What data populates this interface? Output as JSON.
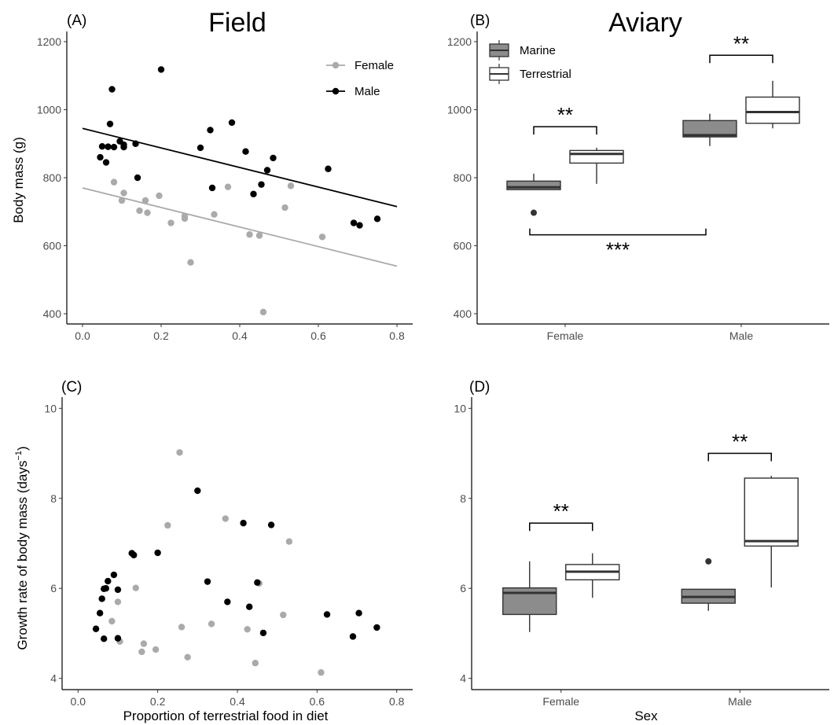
{
  "titles": {
    "field": "Field",
    "aviary": "Aviary"
  },
  "panel_labels": {
    "a": "(A)",
    "b": "(B)",
    "c": "(C)",
    "d": "(D)"
  },
  "axis_titles": {
    "body_mass": "Body mass (g)",
    "growth_rate": "Growth rate of body mass (days",
    "growth_rate_exp": "−1",
    "growth_rate_close": ")",
    "proportion": "Proportion of terrestrial food in diet",
    "sex": "Sex"
  },
  "colors": {
    "female": "#aaaaaa",
    "male": "#000000",
    "marine": "#8c8c8c",
    "terrestrial": "#ffffff",
    "box_line": "#333333"
  },
  "chart_data": [
    {
      "id": "A",
      "type": "scatter",
      "xlabel": "",
      "ylabel": "Body mass (g)",
      "xlim": [
        -0.04,
        0.84
      ],
      "ylim": [
        370,
        1230
      ],
      "xticks": [
        "0.0",
        "0.2",
        "0.4",
        "0.6",
        "0.8"
      ],
      "xtick_values": [
        0,
        0.2,
        0.4,
        0.6,
        0.8
      ],
      "yticks": [
        "400",
        "600",
        "800",
        "1000",
        "1200"
      ],
      "ytick_values": [
        400,
        600,
        800,
        1000,
        1200
      ],
      "legend": {
        "position": "top-right",
        "entries": [
          "Female",
          "Male"
        ]
      },
      "series": [
        {
          "name": "Female",
          "points": [
            [
              0.08,
              787
            ],
            [
              0.1,
              733
            ],
            [
              0.105,
              755
            ],
            [
              0.145,
              703
            ],
            [
              0.16,
              733
            ],
            [
              0.165,
              697
            ],
            [
              0.195,
              747
            ],
            [
              0.225,
              667
            ],
            [
              0.26,
              687
            ],
            [
              0.26,
              680
            ],
            [
              0.275,
              551
            ],
            [
              0.335,
              692
            ],
            [
              0.37,
              773
            ],
            [
              0.425,
              633
            ],
            [
              0.45,
              630
            ],
            [
              0.46,
              405
            ],
            [
              0.515,
              712
            ],
            [
              0.53,
              776
            ],
            [
              0.61,
              626
            ]
          ],
          "fit": {
            "x": [
              0.0,
              0.8
            ],
            "y": [
              770,
              540
            ]
          }
        },
        {
          "name": "Male",
          "points": [
            [
              0.045,
              860
            ],
            [
              0.05,
              892
            ],
            [
              0.06,
              845
            ],
            [
              0.065,
              891
            ],
            [
              0.07,
              958
            ],
            [
              0.075,
              1060
            ],
            [
              0.08,
              890
            ],
            [
              0.095,
              907
            ],
            [
              0.105,
              890
            ],
            [
              0.105,
              897
            ],
            [
              0.135,
              900
            ],
            [
              0.14,
              800
            ],
            [
              0.2,
              1118
            ],
            [
              0.3,
              888
            ],
            [
              0.325,
              940
            ],
            [
              0.33,
              770
            ],
            [
              0.38,
              962
            ],
            [
              0.415,
              877
            ],
            [
              0.435,
              752
            ],
            [
              0.455,
              780
            ],
            [
              0.47,
              822
            ],
            [
              0.485,
              858
            ],
            [
              0.625,
              826
            ],
            [
              0.69,
              667
            ],
            [
              0.705,
              660
            ],
            [
              0.75,
              679
            ]
          ],
          "fit": {
            "x": [
              0.0,
              0.8
            ],
            "y": [
              945,
              715
            ]
          }
        }
      ]
    },
    {
      "id": "B",
      "type": "box",
      "xlabel": "",
      "ylabel": "",
      "categories": [
        "Female",
        "Male"
      ],
      "ylim": [
        370,
        1230
      ],
      "yticks": [
        "400",
        "600",
        "800",
        "1000",
        "1200"
      ],
      "ytick_values": [
        400,
        600,
        800,
        1000,
        1200
      ],
      "legend": {
        "position": "top-left",
        "entries": [
          "Marine",
          "Terrestrial"
        ]
      },
      "series": [
        {
          "name": "Marine",
          "boxes": [
            {
              "category": "Female",
              "min": 765,
              "q1": 765,
              "median": 772,
              "q3": 790,
              "max": 812,
              "outliers": [
                697
              ]
            },
            {
              "category": "Male",
              "min": 893,
              "q1": 920,
              "median": 925,
              "q3": 968,
              "max": 988,
              "outliers": []
            }
          ]
        },
        {
          "name": "Terrestrial",
          "boxes": [
            {
              "category": "Female",
              "min": 782,
              "q1": 843,
              "median": 870,
              "q3": 880,
              "max": 888,
              "outliers": []
            },
            {
              "category": "Male",
              "min": 945,
              "q1": 960,
              "median": 993,
              "q3": 1037,
              "max": 1085,
              "outliers": []
            }
          ]
        }
      ],
      "annotations": [
        {
          "label": "**",
          "between": "Female Marine – Female Terrestrial",
          "y": 950
        },
        {
          "label": "**",
          "between": "Male Marine – Male Terrestrial",
          "y": 1160
        },
        {
          "label": "***",
          "between": "Female – Male",
          "y": 632
        }
      ]
    },
    {
      "id": "C",
      "type": "scatter",
      "xlabel": "Proportion of terrestrial food in diet",
      "ylabel": "Growth rate of body mass (days−1)",
      "xlim": [
        -0.04,
        0.84
      ],
      "ylim": [
        3.75,
        10.25
      ],
      "xticks": [
        "0.0",
        "0.2",
        "0.4",
        "0.6",
        "0.8"
      ],
      "xtick_values": [
        0,
        0.2,
        0.4,
        0.6,
        0.8
      ],
      "yticks": [
        "4",
        "6",
        "8",
        "10"
      ],
      "ytick_values": [
        4,
        6,
        8,
        10
      ],
      "series": [
        {
          "name": "Female",
          "points": [
            [
              0.085,
              5.27
            ],
            [
              0.1,
              5.7
            ],
            [
              0.105,
              4.82
            ],
            [
              0.145,
              6.01
            ],
            [
              0.16,
              4.59
            ],
            [
              0.165,
              4.77
            ],
            [
              0.195,
              4.64
            ],
            [
              0.225,
              7.4
            ],
            [
              0.255,
              9.02
            ],
            [
              0.26,
              5.14
            ],
            [
              0.275,
              4.47
            ],
            [
              0.335,
              5.21
            ],
            [
              0.37,
              7.55
            ],
            [
              0.425,
              5.09
            ],
            [
              0.445,
              4.34
            ],
            [
              0.455,
              6.11
            ],
            [
              0.515,
              5.41
            ],
            [
              0.53,
              7.04
            ],
            [
              0.61,
              4.13
            ]
          ]
        },
        {
          "name": "Male",
          "points": [
            [
              0.045,
              5.1
            ],
            [
              0.055,
              5.45
            ],
            [
              0.06,
              5.77
            ],
            [
              0.065,
              5.99
            ],
            [
              0.065,
              4.88
            ],
            [
              0.07,
              6.0
            ],
            [
              0.075,
              6.16
            ],
            [
              0.09,
              6.3
            ],
            [
              0.1,
              5.97
            ],
            [
              0.1,
              4.89
            ],
            [
              0.135,
              6.78
            ],
            [
              0.14,
              6.74
            ],
            [
              0.2,
              6.79
            ],
            [
              0.3,
              8.17
            ],
            [
              0.325,
              6.15
            ],
            [
              0.375,
              5.7
            ],
            [
              0.415,
              7.45
            ],
            [
              0.43,
              5.59
            ],
            [
              0.45,
              6.13
            ],
            [
              0.465,
              5.01
            ],
            [
              0.485,
              7.41
            ],
            [
              0.625,
              5.42
            ],
            [
              0.69,
              4.93
            ],
            [
              0.705,
              5.45
            ],
            [
              0.75,
              5.13
            ]
          ]
        }
      ]
    },
    {
      "id": "D",
      "type": "box",
      "xlabel": "Sex",
      "ylabel": "",
      "categories": [
        "Female",
        "Male"
      ],
      "ylim": [
        3.75,
        10.25
      ],
      "yticks": [
        "4",
        "6",
        "8",
        "10"
      ],
      "ytick_values": [
        4,
        6,
        8,
        10
      ],
      "series": [
        {
          "name": "Marine",
          "boxes": [
            {
              "category": "Female",
              "min": 5.03,
              "q1": 5.42,
              "median": 5.9,
              "q3": 6.01,
              "max": 6.6,
              "outliers": []
            },
            {
              "category": "Male",
              "min": 5.5,
              "q1": 5.67,
              "median": 5.81,
              "q3": 5.98,
              "max": 5.98,
              "outliers": [
                6.6
              ]
            }
          ]
        },
        {
          "name": "Terrestrial",
          "boxes": [
            {
              "category": "Female",
              "min": 5.79,
              "q1": 6.19,
              "median": 6.37,
              "q3": 6.53,
              "max": 6.78,
              "outliers": []
            },
            {
              "category": "Male",
              "min": 6.02,
              "q1": 6.94,
              "median": 7.05,
              "q3": 8.45,
              "max": 8.5,
              "outliers": []
            }
          ]
        }
      ],
      "annotations": [
        {
          "label": "**",
          "between": "Female Marine – Female Terrestrial",
          "y": 7.45
        },
        {
          "label": "**",
          "between": "Male Marine – Male Terrestrial",
          "y": 9.0
        }
      ]
    }
  ]
}
